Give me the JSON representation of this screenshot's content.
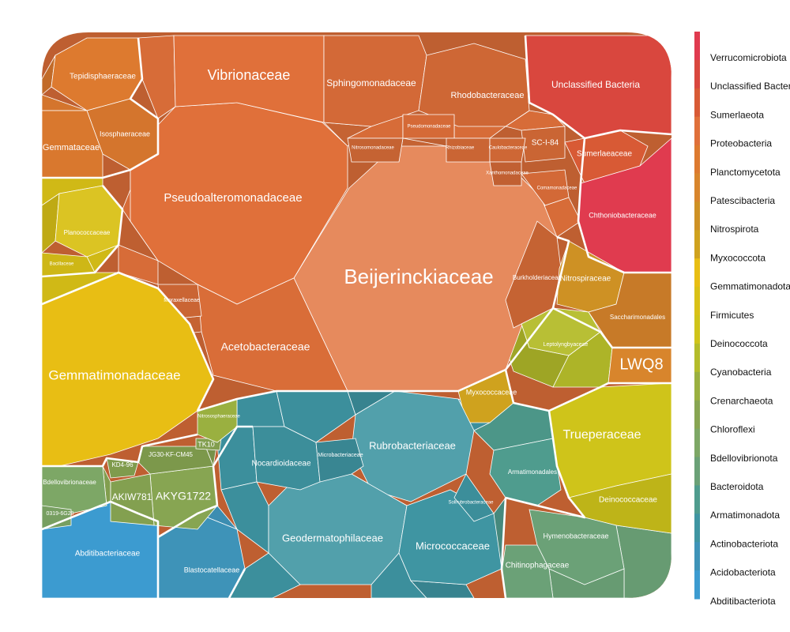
{
  "chart_data": {
    "type": "voronoi-treemap",
    "title": "",
    "legend": {
      "placement": "right",
      "phyla": [
        {
          "name": "Verrucomicrobiota",
          "color": "#E03B4F"
        },
        {
          "name": "Unclassified Bacteria",
          "color": "#D9473E"
        },
        {
          "name": "Sumerlaeota",
          "color": "#D85A35"
        },
        {
          "name": "Proteobacteria",
          "color": "#E0703A"
        },
        {
          "name": "Planctomycetota",
          "color": "#DD7A2F"
        },
        {
          "name": "Patescibacteria",
          "color": "#D8852C"
        },
        {
          "name": "Nitrospirota",
          "color": "#CE9124"
        },
        {
          "name": "Myxococcota",
          "color": "#CFA21E"
        },
        {
          "name": "Gemmatimonadota",
          "color": "#E8BE14"
        },
        {
          "name": "Firmicutes",
          "color": "#D9C117"
        },
        {
          "name": "Deinococcota",
          "color": "#CFC41A"
        },
        {
          "name": "Cyanobacteria",
          "color": "#B4BC2A"
        },
        {
          "name": "Crenarchaeota",
          "color": "#9AB040"
        },
        {
          "name": "Chloroflexi",
          "color": "#87A552"
        },
        {
          "name": "Bdellovibrionota",
          "color": "#7DA766"
        },
        {
          "name": "Bacteroidota",
          "color": "#6BA177"
        },
        {
          "name": "Armatimonadota",
          "color": "#4F9C8E"
        },
        {
          "name": "Actinobacteriota",
          "color": "#3F95A2"
        },
        {
          "name": "Acidobacteriota",
          "color": "#3E93B8"
        },
        {
          "name": "Abditibacteriota",
          "color": "#3C9BD0"
        }
      ]
    },
    "families": [
      {
        "name": "Beijerinckiaceae",
        "phylum": "Proteobacteria"
      },
      {
        "name": "Pseudoalteromonadaceae",
        "phylum": "Proteobacteria"
      },
      {
        "name": "Vibrionaceae",
        "phylum": "Proteobacteria"
      },
      {
        "name": "Acetobacteraceae",
        "phylum": "Proteobacteria"
      },
      {
        "name": "Sphingomonadaceae",
        "phylum": "Proteobacteria"
      },
      {
        "name": "Rhodobacteraceae",
        "phylum": "Proteobacteria"
      },
      {
        "name": "Moraxellaceae",
        "phylum": "Proteobacteria"
      },
      {
        "name": "Burkholderiaceae",
        "phylum": "Proteobacteria"
      },
      {
        "name": "SC-I-84",
        "phylum": "Proteobacteria"
      },
      {
        "name": "Pseudomonadaceae",
        "phylum": "Proteobacteria"
      },
      {
        "name": "Nitrosomonadaceae",
        "phylum": "Proteobacteria"
      },
      {
        "name": "Rhizobiaceae",
        "phylum": "Proteobacteria"
      },
      {
        "name": "Caulobacteraceae",
        "phylum": "Proteobacteria"
      },
      {
        "name": "Xanthomonadaceae",
        "phylum": "Proteobacteria"
      },
      {
        "name": "Comamonadaceae",
        "phylum": "Proteobacteria"
      },
      {
        "name": "Unclassified Bacteria",
        "phylum": "Unclassified Bacteria"
      },
      {
        "name": "Sumerlaeaceae",
        "phylum": "Sumerlaeota"
      },
      {
        "name": "Chthoniobacteraceae",
        "phylum": "Verrucomicrobiota"
      },
      {
        "name": "Nitrospiraceae",
        "phylum": "Nitrospirota"
      },
      {
        "name": "Saccharimonadales",
        "phylum": "Patescibacteria"
      },
      {
        "name": "LWQ8",
        "phylum": "Patescibacteria"
      },
      {
        "name": "Tepidisphaeraceae",
        "phylum": "Planctomycetota"
      },
      {
        "name": "Isosphaeraceae",
        "phylum": "Planctomycetota"
      },
      {
        "name": "Gemmataceae",
        "phylum": "Planctomycetota"
      },
      {
        "name": "Planococcaceae",
        "phylum": "Firmicutes"
      },
      {
        "name": "Bacillaceae",
        "phylum": "Firmicutes"
      },
      {
        "name": "Gemmatimonadaceae",
        "phylum": "Gemmatimonadota"
      },
      {
        "name": "Myxococcaceae",
        "phylum": "Myxococcota"
      },
      {
        "name": "Leptolyngbyaceae",
        "phylum": "Cyanobacteria"
      },
      {
        "name": "Trueperaceae",
        "phylum": "Deinococcota"
      },
      {
        "name": "Deinococcaceae",
        "phylum": "Deinococcota"
      },
      {
        "name": "Rubrobacteriaceae",
        "phylum": "Actinobacteriota"
      },
      {
        "name": "Geodermatophilaceae",
        "phylum": "Actinobacteriota"
      },
      {
        "name": "Micrococcaceae",
        "phylum": "Actinobacteriota"
      },
      {
        "name": "Nocardioidaceae",
        "phylum": "Actinobacteriota"
      },
      {
        "name": "Microbacteriaceae",
        "phylum": "Actinobacteriota"
      },
      {
        "name": "Solirubrobacteraceae",
        "phylum": "Actinobacteriota"
      },
      {
        "name": "Armatimonadales",
        "phylum": "Armatimonadota"
      },
      {
        "name": "Hymenobacteraceae",
        "phylum": "Bacteroidota"
      },
      {
        "name": "Chitinophagaceae",
        "phylum": "Bacteroidota"
      },
      {
        "name": "Blastocatellaceae",
        "phylum": "Acidobacteriota"
      },
      {
        "name": "Abditibacteriaceae",
        "phylum": "Abditibacteriota"
      },
      {
        "name": "Bdellovibrionaceae",
        "phylum": "Bdellovibrionota"
      },
      {
        "name": "0319-6G20",
        "phylum": "Bdellovibrionota"
      },
      {
        "name": "AKYG1722",
        "phylum": "Chloroflexi"
      },
      {
        "name": "AKIW781",
        "phylum": "Chloroflexi"
      },
      {
        "name": "JG30-KF-CM45",
        "phylum": "Chloroflexi"
      },
      {
        "name": "KD4-96",
        "phylum": "Chloroflexi"
      },
      {
        "name": "TK10",
        "phylum": "Chloroflexi"
      },
      {
        "name": "Nitrososphaeraceae",
        "phylum": "Crenarchaeota"
      }
    ]
  }
}
